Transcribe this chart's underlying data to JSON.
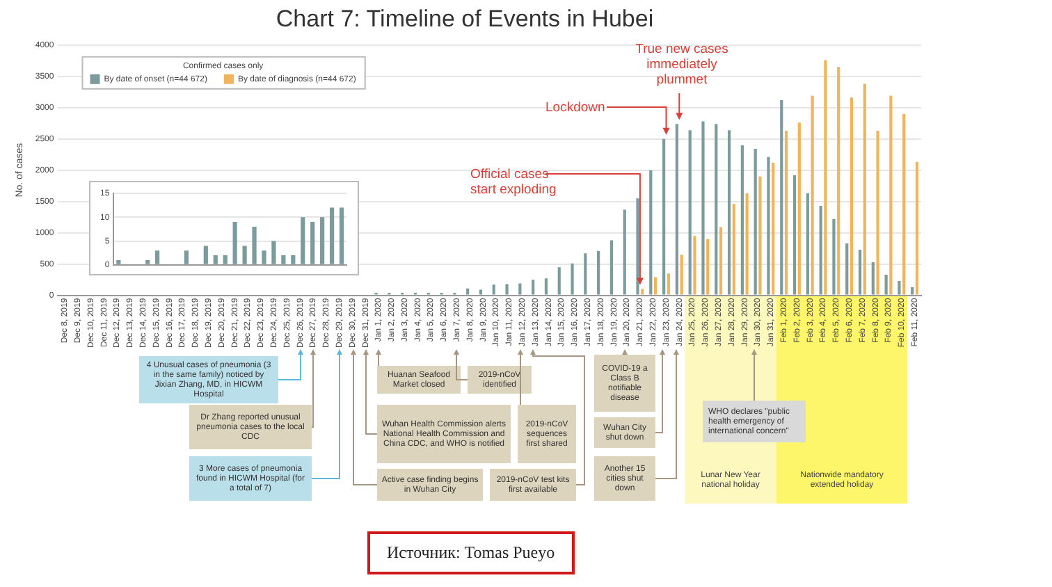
{
  "chart_data": [
    {
      "type": "bar",
      "title": "Chart 7: Timeline of Events in Hubei",
      "ylabel": "No. of cases",
      "legend_title": "Confirmed cases only",
      "legend": "top left",
      "grid": "y",
      "categories": [
        "Dec 8, 2019",
        "Dec 9, 2019",
        "Dec 10, 2019",
        "Dec 11, 2019",
        "Dec 12, 2019",
        "Dec 13, 2019",
        "Dec 14, 2019",
        "Dec 15, 2019",
        "Dec 16, 2019",
        "Dec 17, 2019",
        "Dec 18, 2019",
        "Dec 19, 2019",
        "Dec 20, 2019",
        "Dec 21, 2019",
        "Dec 22, 2019",
        "Dec 23, 2019",
        "Dec 24, 2019",
        "Dec 25, 2019",
        "Dec 26, 2019",
        "Dec 27, 2019",
        "Dec 28, 2019",
        "Dec 29, 2019",
        "Dec 30, 2019",
        "Dec 31, 2019",
        "Jan 1, 2020",
        "Jan 2, 2020",
        "Jan 3, 2020",
        "Jan 4, 2020",
        "Jan 5, 2020",
        "Jan 6, 2020",
        "Jan 7, 2020",
        "Jan 8, 2020",
        "Jan 9, 2020",
        "Jan 10, 2020",
        "Jan 11, 2020",
        "Jan 12, 2020",
        "Jan 13, 2020",
        "Jan 14, 2020",
        "Jan 15, 2020",
        "Jan 16, 2020",
        "Jan 17, 2020",
        "Jan 18, 2020",
        "Jan 19, 2020",
        "Jan 20, 2020",
        "Jan 21, 2020",
        "Jan 22, 2020",
        "Jan 23, 2020",
        "Jan 24, 2020",
        "Jan 25, 2020",
        "Jan 26, 2020",
        "Jan 27, 2020",
        "Jan 28, 2020",
        "Jan 29, 2020",
        "Jan 30, 2020",
        "Jan 31, 2020",
        "Feb 1, 2020",
        "Feb 2, 2020",
        "Feb 3, 2020",
        "Feb 4, 2020",
        "Feb 5, 2020",
        "Feb 6, 2020",
        "Feb 7, 2020",
        "Feb 8, 2020",
        "Feb 9, 2020",
        "Feb 10, 2020",
        "Feb 11, 2020"
      ],
      "series": [
        {
          "name": "By date of onset (n=44 672)",
          "color": "#7b9b9d",
          "values": [
            null,
            null,
            null,
            null,
            null,
            null,
            null,
            null,
            null,
            null,
            null,
            null,
            null,
            null,
            null,
            null,
            null,
            null,
            null,
            null,
            null,
            null,
            null,
            null,
            40,
            40,
            40,
            40,
            40,
            40,
            40,
            110,
            90,
            170,
            180,
            190,
            250,
            270,
            450,
            510,
            670,
            710,
            880,
            1370,
            1550,
            2000,
            2500,
            2740,
            2640,
            2780,
            2740,
            2640,
            2400,
            2340,
            2210,
            3120,
            1920,
            1630,
            1430,
            1220,
            830,
            730,
            530,
            330,
            230,
            130
          ]
        },
        {
          "name": "By date of diagnosis (n=44 672)",
          "color": "#f0b45c",
          "values": [
            null,
            null,
            null,
            null,
            null,
            null,
            null,
            null,
            null,
            null,
            null,
            null,
            null,
            null,
            null,
            null,
            null,
            null,
            null,
            null,
            null,
            null,
            null,
            null,
            null,
            null,
            null,
            null,
            null,
            null,
            null,
            null,
            null,
            null,
            null,
            null,
            null,
            null,
            null,
            null,
            null,
            null,
            null,
            null,
            100,
            290,
            350,
            650,
            950,
            900,
            1090,
            1460,
            1630,
            1900,
            2120,
            2630,
            2760,
            3190,
            3760,
            3650,
            3160,
            3380,
            2630,
            3190,
            2900,
            2130
          ]
        }
      ],
      "ylim": [
        0,
        4000
      ],
      "yticks": [
        0,
        500,
        1000,
        1500,
        2000,
        2500,
        3000,
        3500,
        4000
      ],
      "annotations": [
        {
          "text": "Official cases start exploding",
          "x": "Jan 21, 2020",
          "y": 100
        },
        {
          "text": "Lockdown",
          "x": "Jan 23, 2020",
          "y": 2500
        },
        {
          "text": "True new cases immediately plummet",
          "x": "Jan 24, 2020",
          "y": 2740
        },
        "4 Unusual cases of pneumonia (3 in the same family) noticed by Jixian Zhang, MD, in HICWM Hospital",
        "Dr Zhang reported unusual pneumonia cases to the local CDC",
        "3 More cases of pneumonia found in HICWM Hospital (for a total of 7)",
        "Huanan Seafood Market closed",
        "2019-nCoV identified",
        "Wuhan Health Commission alerts National Health Commission and China CDC, and WHO is notified",
        "Active case finding begins in Wuhan City",
        "2019-nCoV sequences first shared",
        "2019-nCoV test kits first available",
        "COVID-19 a Class B notifiable disease",
        "Wuhan City shut down",
        "Another 15 cities shut down",
        "WHO declares \"public health emergency of international concern\"",
        "Lunar New Year national holiday",
        "Nationwide mandatory extended holiday",
        "Источник: Tomas Pueyo"
      ]
    },
    {
      "type": "bar",
      "categories": [
        null,
        null,
        null,
        null,
        null,
        null,
        null,
        null,
        null,
        null,
        null,
        null,
        null,
        null,
        null,
        null,
        null,
        null,
        null,
        null,
        null,
        null,
        null,
        null
      ],
      "values": [
        1,
        0,
        0,
        1,
        3,
        0,
        0,
        3,
        0,
        4,
        2,
        2,
        9,
        4,
        8,
        3,
        5,
        2,
        2,
        10,
        9,
        10,
        12,
        12
      ],
      "color": "#7b9b9d",
      "ylim": [
        0,
        15
      ],
      "yticks": [
        0,
        5,
        10,
        15
      ],
      "grid": "y",
      "tick_labels": "y"
    }
  ]
}
